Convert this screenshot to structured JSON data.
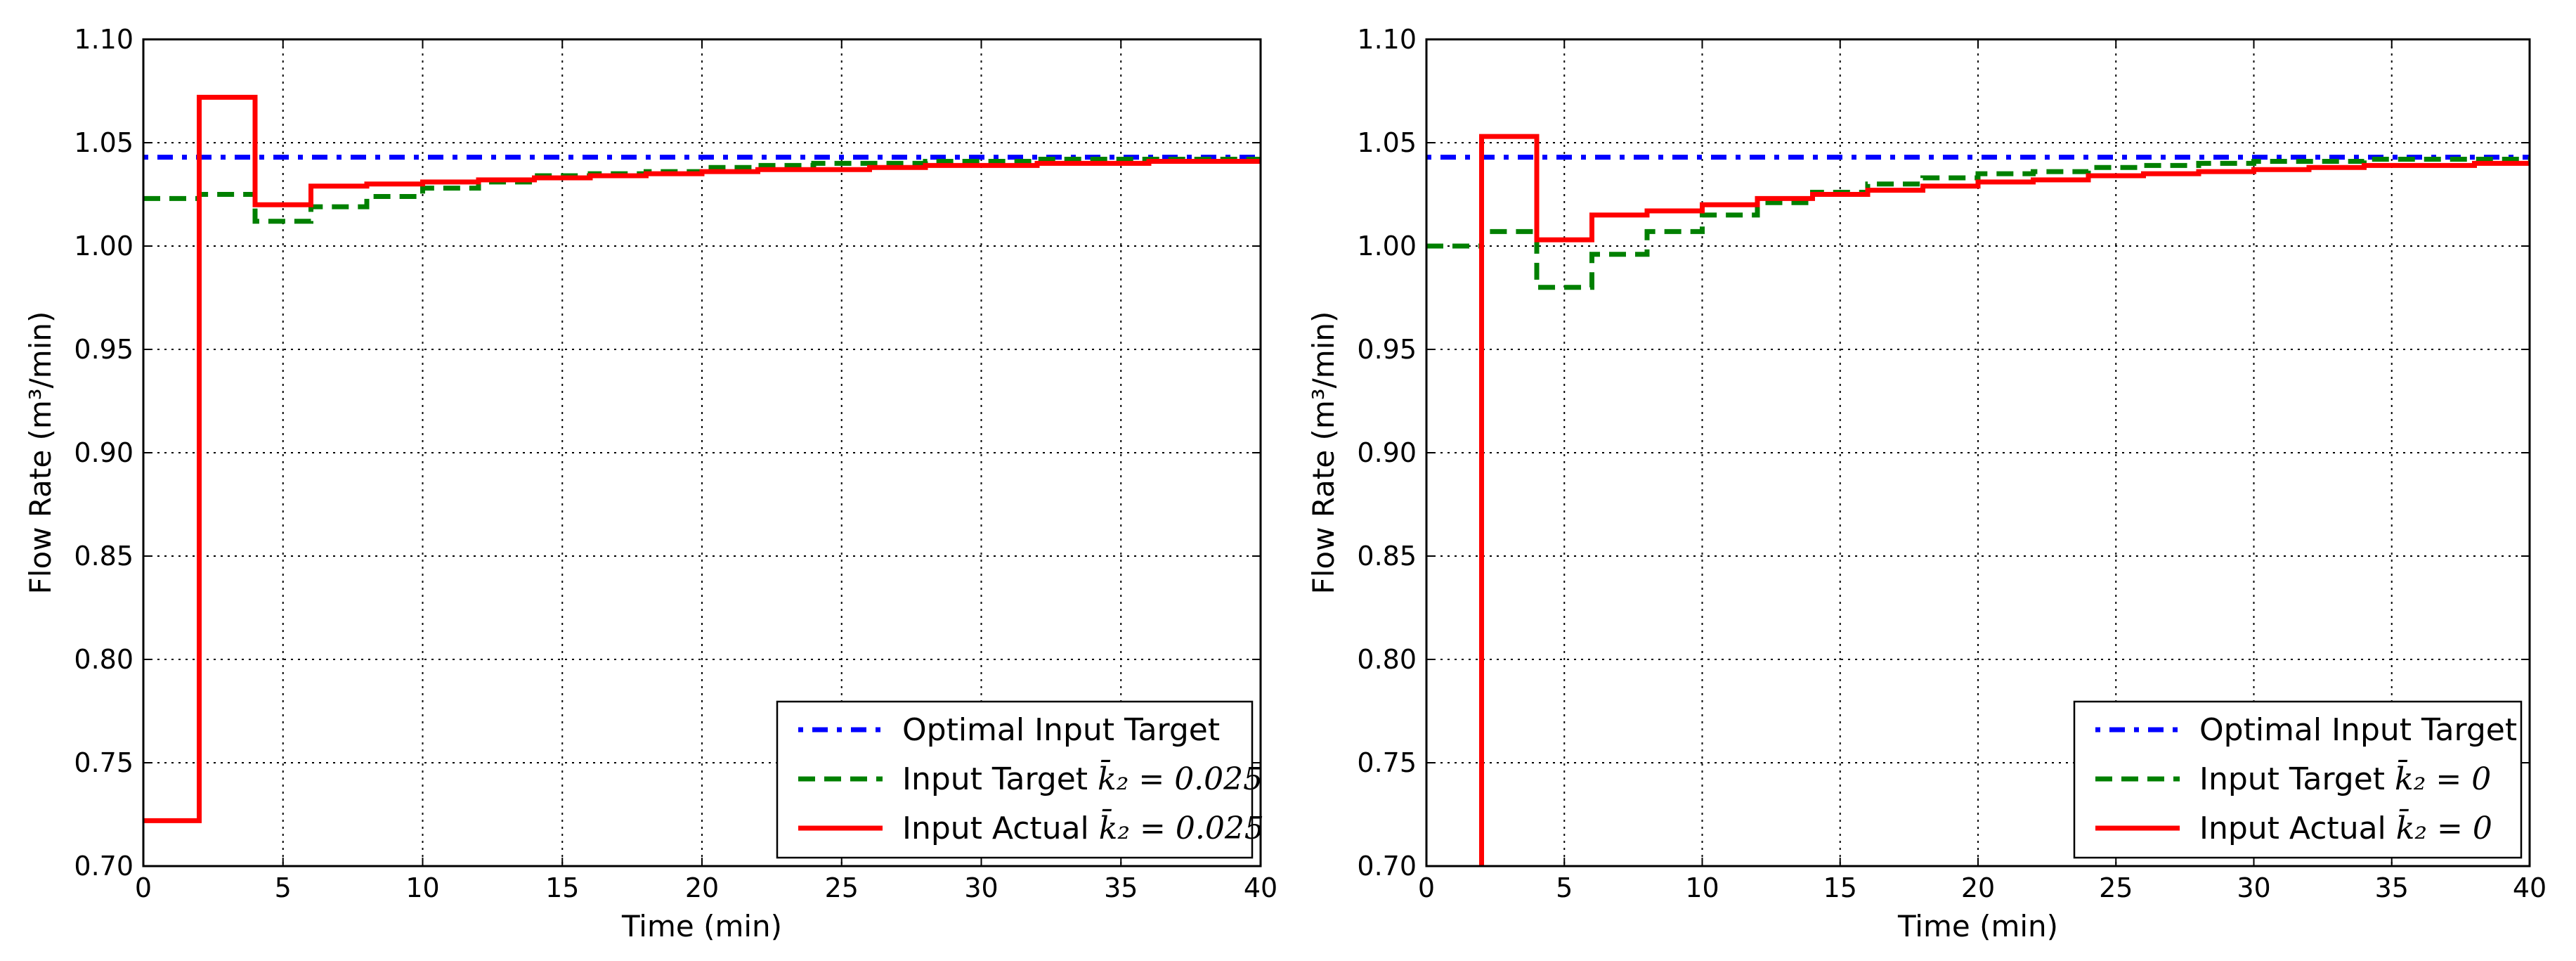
{
  "chart_data": [
    {
      "type": "line",
      "xlabel": "Time (min)",
      "ylabel": "Flow Rate  (m³/min)",
      "xlim": [
        0,
        40
      ],
      "ylim": [
        0.7,
        1.1
      ],
      "x_ticks": [
        "0",
        "5",
        "10",
        "15",
        "20",
        "25",
        "30",
        "35",
        "40"
      ],
      "y_ticks": [
        "0.70",
        "0.75",
        "0.80",
        "0.85",
        "0.90",
        "0.95",
        "1.00",
        "1.05",
        "1.10"
      ],
      "grid": true,
      "legend_position": "bottom-right",
      "series": [
        {
          "name": "Optimal Input Target",
          "style": "dash-dot",
          "color": "#0000ff",
          "x": [
            0,
            40
          ],
          "y": [
            1.043,
            1.043
          ]
        },
        {
          "name": "Input Target",
          "legend_math": "k̄₂ = 0.025",
          "style": "dashed",
          "step": true,
          "color": "#008000",
          "x": [
            0,
            2,
            4,
            6,
            8,
            10,
            12,
            14,
            16,
            18,
            20,
            22,
            24,
            26,
            28,
            30,
            32,
            34,
            36,
            38,
            40
          ],
          "y": [
            1.023,
            1.025,
            1.012,
            1.019,
            1.024,
            1.028,
            1.031,
            1.034,
            1.035,
            1.036,
            1.038,
            1.039,
            1.04,
            1.04,
            1.041,
            1.041,
            1.042,
            1.042,
            1.042,
            1.042,
            1.042
          ]
        },
        {
          "name": "Input Actual",
          "legend_math": "k̄₂ = 0.025",
          "style": "solid",
          "step": true,
          "color": "#ff0000",
          "x": [
            0,
            2,
            4,
            6,
            8,
            10,
            12,
            14,
            16,
            18,
            20,
            22,
            24,
            26,
            28,
            30,
            32,
            34,
            36,
            38,
            40
          ],
          "y": [
            0.722,
            1.072,
            1.02,
            1.029,
            1.03,
            1.031,
            1.032,
            1.033,
            1.034,
            1.035,
            1.036,
            1.037,
            1.037,
            1.038,
            1.039,
            1.039,
            1.04,
            1.04,
            1.041,
            1.041,
            1.041
          ]
        }
      ]
    },
    {
      "type": "line",
      "xlabel": "Time (min)",
      "ylabel": "Flow Rate  (m³/min)",
      "xlim": [
        0,
        40
      ],
      "ylim": [
        0.7,
        1.1
      ],
      "x_ticks": [
        "0",
        "5",
        "10",
        "15",
        "20",
        "25",
        "30",
        "35",
        "40"
      ],
      "y_ticks": [
        "0.70",
        "0.75",
        "0.80",
        "0.85",
        "0.90",
        "0.95",
        "1.00",
        "1.05",
        "1.10"
      ],
      "grid": true,
      "legend_position": "bottom-right",
      "series": [
        {
          "name": "Optimal Input Target",
          "style": "dash-dot",
          "color": "#0000ff",
          "x": [
            0,
            40
          ],
          "y": [
            1.043,
            1.043
          ]
        },
        {
          "name": "Input Target",
          "legend_math": "k̄₂ = 0",
          "style": "dashed",
          "step": true,
          "color": "#008000",
          "x": [
            0,
            2,
            4,
            6,
            8,
            10,
            12,
            14,
            16,
            18,
            20,
            22,
            24,
            26,
            28,
            30,
            32,
            34,
            36,
            38,
            40
          ],
          "y": [
            1.0,
            1.007,
            0.98,
            0.996,
            1.007,
            1.015,
            1.021,
            1.026,
            1.03,
            1.033,
            1.035,
            1.036,
            1.038,
            1.039,
            1.04,
            1.041,
            1.041,
            1.042,
            1.042,
            1.042,
            1.042
          ]
        },
        {
          "name": "Input Actual",
          "legend_math": "k̄₂ = 0",
          "style": "solid",
          "step": true,
          "color": "#ff0000",
          "x": [
            2,
            2,
            4,
            6,
            8,
            10,
            12,
            14,
            16,
            18,
            20,
            22,
            24,
            26,
            28,
            30,
            32,
            34,
            36,
            38,
            40
          ],
          "y": [
            0.7,
            1.053,
            1.003,
            1.015,
            1.017,
            1.02,
            1.023,
            1.025,
            1.027,
            1.029,
            1.031,
            1.032,
            1.034,
            1.035,
            1.036,
            1.037,
            1.038,
            1.039,
            1.039,
            1.04,
            1.04
          ]
        }
      ]
    }
  ]
}
